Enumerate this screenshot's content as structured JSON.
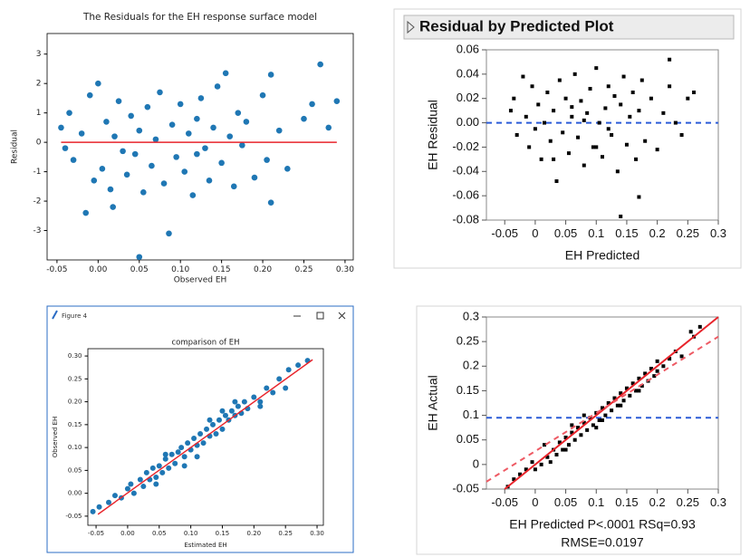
{
  "chart_data": [
    {
      "type": "scatter",
      "title": "The Residuals for the EH response surface model",
      "x_label": "Observed EH",
      "y_label": "Residual",
      "color": "#1f77b4",
      "x": [
        -0.045,
        -0.04,
        -0.035,
        -0.03,
        -0.02,
        -0.015,
        -0.01,
        -0.005,
        0.0,
        0.005,
        0.01,
        0.015,
        0.018,
        0.02,
        0.025,
        0.03,
        0.035,
        0.04,
        0.045,
        0.05,
        0.05,
        0.055,
        0.06,
        0.065,
        0.07,
        0.075,
        0.08,
        0.086,
        0.09,
        0.095,
        0.1,
        0.105,
        0.11,
        0.115,
        0.12,
        0.125,
        0.13,
        0.135,
        0.14,
        0.145,
        0.15,
        0.155,
        0.16,
        0.165,
        0.17,
        0.175,
        0.18,
        0.19,
        0.2,
        0.205,
        0.21,
        0.21,
        0.22,
        0.23,
        0.25,
        0.26,
        0.27,
        0.28,
        0.29,
        0.12
      ],
      "values": [
        0.5,
        -0.2,
        1.0,
        -0.6,
        0.3,
        -2.4,
        1.6,
        -1.3,
        2.0,
        -0.9,
        0.7,
        -1.6,
        -2.2,
        0.2,
        1.4,
        -0.3,
        -1.1,
        0.9,
        -0.4,
        -3.9,
        0.4,
        -1.7,
        1.2,
        -0.8,
        0.1,
        1.7,
        -1.4,
        -3.1,
        0.6,
        -0.5,
        1.3,
        -1.0,
        0.3,
        -1.8,
        0.8,
        1.5,
        -0.2,
        -1.3,
        0.5,
        1.9,
        -0.7,
        2.35,
        0.2,
        -1.5,
        1.0,
        -0.1,
        0.7,
        -1.2,
        1.6,
        -0.6,
        2.3,
        -2.05,
        0.4,
        -0.9,
        0.8,
        1.3,
        2.65,
        0.5,
        1.4,
        -0.4
      ],
      "xlim": [
        -0.062,
        0.31
      ],
      "ylim": [
        -4.0,
        3.7
      ],
      "xticks": [
        -0.05,
        {
          "value": 0,
          "label": "0.00"
        },
        0.05,
        {
          "value": 0.1,
          "label": "0.10"
        },
        0.15,
        {
          "value": 0.2,
          "label": "0.20"
        },
        0.25,
        {
          "value": 0.3,
          "label": "0.30"
        }
      ],
      "yticks": [
        -3,
        -2,
        -1,
        0,
        1,
        2,
        3
      ],
      "lines": [
        {
          "x": [
            -0.045,
            0.29
          ],
          "values": [
            0,
            0
          ],
          "color": "#e8242b",
          "dash": false
        }
      ]
    },
    {
      "type": "scatter",
      "title": "Residual by Predicted Plot",
      "x_label": "EH Predicted",
      "y_label": "EH Residual",
      "color": "#000000",
      "x": [
        -0.04,
        -0.035,
        -0.03,
        -0.02,
        -0.015,
        -0.01,
        -0.005,
        0.0,
        0.005,
        0.01,
        0.015,
        0.02,
        0.025,
        0.03,
        0.035,
        0.04,
        0.045,
        0.05,
        0.055,
        0.06,
        0.065,
        0.07,
        0.075,
        0.08,
        0.085,
        0.09,
        0.095,
        0.1,
        0.105,
        0.11,
        0.115,
        0.12,
        0.125,
        0.13,
        0.135,
        0.14,
        0.145,
        0.15,
        0.155,
        0.16,
        0.165,
        0.17,
        0.175,
        0.18,
        0.19,
        0.2,
        0.21,
        0.22,
        0.23,
        0.24,
        0.25,
        0.26,
        0.14,
        0.17,
        0.22,
        0.03,
        0.08,
        0.12,
        0.06,
        0.1
      ],
      "values": [
        0.01,
        0.02,
        -0.01,
        0.038,
        0.005,
        -0.02,
        0.03,
        -0.005,
        0.015,
        -0.03,
        0.0,
        0.025,
        -0.015,
        0.01,
        -0.048,
        0.035,
        -0.008,
        0.02,
        -0.025,
        0.005,
        0.04,
        -0.012,
        0.018,
        -0.035,
        0.008,
        0.028,
        -0.02,
        0.045,
        0.0,
        -0.028,
        0.012,
        0.03,
        -0.01,
        0.022,
        -0.04,
        0.015,
        0.038,
        -0.018,
        0.005,
        0.025,
        -0.03,
        0.01,
        0.035,
        -0.015,
        0.02,
        -0.022,
        0.008,
        0.052,
        0.0,
        -0.01,
        0.02,
        0.025,
        -0.077,
        -0.061,
        0.03,
        -0.03,
        0.002,
        -0.005,
        0.013,
        -0.02
      ],
      "xlim": [
        -0.08,
        0.3
      ],
      "ylim": [
        -0.08,
        0.06
      ],
      "xticks": [
        -0.05,
        0,
        0.05,
        0.1,
        0.15,
        0.2,
        0.25,
        0.3
      ],
      "yticks": [
        0.06,
        0.04,
        0.02,
        {
          "value": 0,
          "label": "0.00"
        },
        -0.02,
        -0.04,
        -0.06,
        -0.08
      ],
      "hlines": [
        {
          "value": 0,
          "color": "#2a5bd7",
          "dash": true
        }
      ]
    },
    {
      "type": "scatter",
      "window_title": "Figure 4",
      "title": "comparison of EH",
      "x_label": "Estimated EH",
      "y_label": "Observed EH",
      "color": "#1f77b4",
      "x": [
        -0.055,
        -0.045,
        -0.03,
        -0.02,
        -0.01,
        0.0,
        0.01,
        0.02,
        0.025,
        0.03,
        0.035,
        0.04,
        0.045,
        0.05,
        0.055,
        0.06,
        0.065,
        0.07,
        0.075,
        0.08,
        0.085,
        0.09,
        0.095,
        0.1,
        0.105,
        0.11,
        0.115,
        0.12,
        0.125,
        0.13,
        0.135,
        0.14,
        0.145,
        0.15,
        0.155,
        0.16,
        0.165,
        0.17,
        0.175,
        0.18,
        0.185,
        0.19,
        0.2,
        0.21,
        0.22,
        0.23,
        0.24,
        0.255,
        0.27,
        0.285,
        0.005,
        0.045,
        0.09,
        0.13,
        0.17,
        0.21,
        0.25,
        0.11,
        0.06,
        0.15
      ],
      "values": [
        -0.04,
        -0.03,
        -0.02,
        -0.005,
        -0.01,
        0.01,
        0.0,
        0.03,
        0.015,
        0.045,
        0.03,
        0.055,
        0.035,
        0.06,
        0.045,
        0.075,
        0.055,
        0.085,
        0.065,
        0.09,
        0.1,
        0.08,
        0.11,
        0.095,
        0.12,
        0.105,
        0.13,
        0.11,
        0.14,
        0.125,
        0.15,
        0.13,
        0.16,
        0.14,
        0.17,
        0.16,
        0.18,
        0.17,
        0.19,
        0.175,
        0.2,
        0.185,
        0.21,
        0.2,
        0.23,
        0.22,
        0.25,
        0.27,
        0.28,
        0.29,
        0.02,
        0.02,
        0.06,
        0.16,
        0.2,
        0.19,
        0.23,
        0.08,
        0.085,
        0.18
      ],
      "xlim": [
        -0.063,
        0.31
      ],
      "ylim": [
        -0.07,
        0.316
      ],
      "xticks": [
        -0.05,
        {
          "value": 0,
          "label": "0.00"
        },
        0.05,
        {
          "value": 0.1,
          "label": "0.10"
        },
        0.15,
        {
          "value": 0.2,
          "label": "0.20"
        },
        0.25,
        {
          "value": 0.3,
          "label": "0.30"
        }
      ],
      "yticks": [
        -0.05,
        {
          "value": 0,
          "label": "0.00"
        },
        0.05,
        {
          "value": 0.1,
          "label": "0.10"
        },
        0.15,
        {
          "value": 0.2,
          "label": "0.20"
        },
        0.25,
        {
          "value": 0.3,
          "label": "0.30"
        }
      ],
      "lines": [
        {
          "x": [
            -0.047,
            0.293
          ],
          "values": [
            -0.046,
            0.292
          ],
          "color": "#e8242b",
          "dash": false
        }
      ]
    },
    {
      "type": "scatter",
      "x_label": "EH Predicted P<.0001 RSq=0.93",
      "annotation": "RMSE=0.0197",
      "y_label": "EH Actual",
      "color": "#000000",
      "x": [
        -0.045,
        -0.035,
        -0.025,
        -0.015,
        -0.005,
        0.0,
        0.01,
        0.02,
        0.025,
        0.03,
        0.035,
        0.04,
        0.045,
        0.05,
        0.055,
        0.06,
        0.065,
        0.07,
        0.075,
        0.08,
        0.085,
        0.09,
        0.095,
        0.1,
        0.105,
        0.11,
        0.115,
        0.12,
        0.125,
        0.13,
        0.135,
        0.14,
        0.145,
        0.15,
        0.155,
        0.16,
        0.165,
        0.17,
        0.175,
        0.18,
        0.185,
        0.19,
        0.195,
        0.2,
        0.21,
        0.22,
        0.23,
        0.24,
        0.255,
        0.27,
        0.015,
        0.05,
        0.08,
        0.11,
        0.14,
        0.17,
        0.2,
        0.26,
        0.1,
        0.06
      ],
      "values": [
        -0.045,
        -0.03,
        -0.02,
        -0.01,
        0.005,
        -0.01,
        0.0,
        0.015,
        0.005,
        0.03,
        0.02,
        0.045,
        0.03,
        0.055,
        0.04,
        0.065,
        0.05,
        0.075,
        0.06,
        0.085,
        0.07,
        0.095,
        0.08,
        0.105,
        0.09,
        0.115,
        0.1,
        0.125,
        0.11,
        0.135,
        0.12,
        0.145,
        0.13,
        0.155,
        0.14,
        0.165,
        0.15,
        0.175,
        0.16,
        0.185,
        0.17,
        0.195,
        0.18,
        0.21,
        0.2,
        0.215,
        0.23,
        0.22,
        0.27,
        0.28,
        0.04,
        0.03,
        0.1,
        0.09,
        0.12,
        0.15,
        0.19,
        0.26,
        0.075,
        0.08
      ],
      "xlim": [
        -0.08,
        0.3
      ],
      "ylim": [
        -0.05,
        0.3
      ],
      "xticks": [
        -0.05,
        0,
        0.05,
        0.1,
        0.15,
        0.2,
        0.25,
        0.3
      ],
      "yticks": [
        0.3,
        0.25,
        0.2,
        0.15,
        0.1,
        0.05,
        0,
        -0.05
      ],
      "hlines": [
        {
          "value": 0.095,
          "color": "#2a5bd7",
          "dash": true
        }
      ],
      "lines": [
        {
          "x": [
            -0.05,
            0.3
          ],
          "values": [
            -0.05,
            0.3
          ],
          "color": "#e8242b",
          "dash": false
        },
        {
          "x": [
            -0.08,
            0.3
          ],
          "values": [
            -0.035,
            0.26
          ],
          "color": "#ee5a64",
          "dash": true
        }
      ]
    }
  ]
}
